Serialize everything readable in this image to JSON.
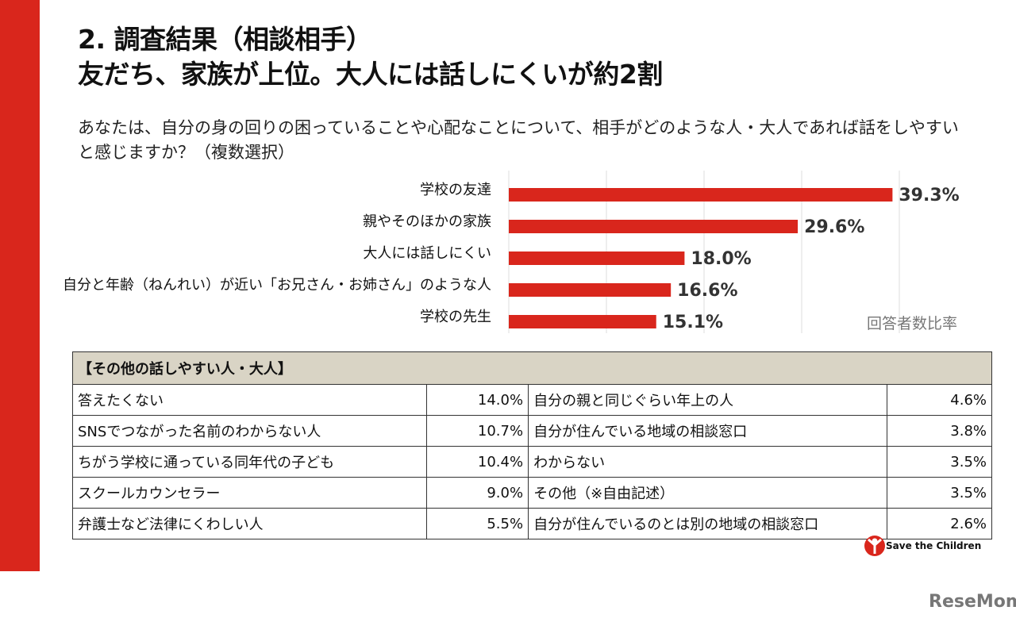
{
  "title_line1": "2. 調査結果（相談相手）",
  "title_line2": "友だち、家族が上位。大人には話しにくいが約2割",
  "question": "あなたは、自分の身の回りの困っていることや心配なことについて、相手がどのような人・大人であれば話をしやすいと感じますか？（複数選択）",
  "chart_data": {
    "type": "bar",
    "orientation": "horizontal",
    "categories": [
      "学校の友達",
      "親やそのほかの家族",
      "大人には話しにくい",
      "自分と年齢（ねんれい）が近い「お兄さん・お姉さん」のような人",
      "学校の先生"
    ],
    "values": [
      39.3,
      29.6,
      18.0,
      16.6,
      15.1
    ],
    "labels": [
      "39.3%",
      "29.6%",
      "18.0%",
      "16.6%",
      "15.1%"
    ],
    "xlim": [
      0,
      40
    ],
    "grid": true,
    "unit_label": "回答者数比率",
    "color": "#d9261c"
  },
  "table": {
    "header": "【その他の話しやすい人・大人】",
    "rows": [
      [
        "答えたくない",
        "14.0%",
        "自分の親と同じぐらい年上の人",
        "4.6%"
      ],
      [
        "SNSでつながった名前のわからない人",
        "10.7%",
        "自分が住んでいる地域の相談窓口",
        "3.8%"
      ],
      [
        "ちがう学校に通っている同年代の子ども",
        "10.4%",
        "わからない",
        "3.5%"
      ],
      [
        "スクールカウンセラー",
        "9.0%",
        "その他（※自由記述）",
        "3.5%"
      ],
      [
        "弁護士など法律にくわしい人",
        "5.5%",
        "自分が住んでいるのとは別の地域の相談窓口",
        "2.6%"
      ]
    ]
  },
  "logo": "Save the Children",
  "watermark": "ReseMom"
}
